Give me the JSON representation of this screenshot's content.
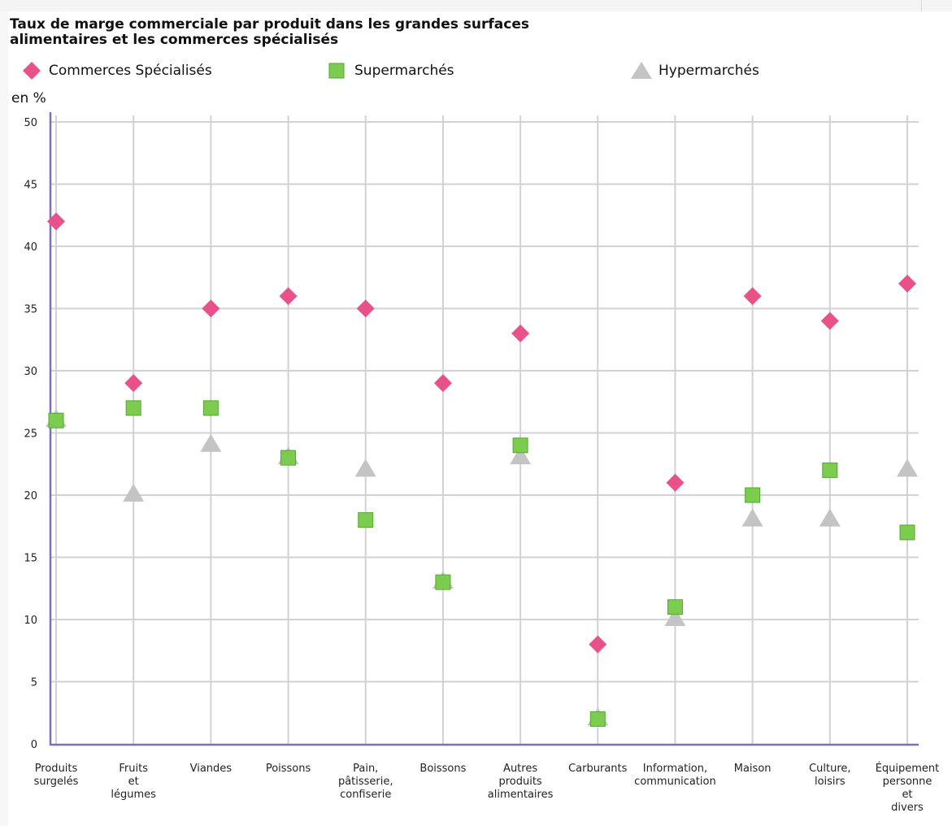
{
  "chart_data": {
    "type": "scatter",
    "title": "Taux de marge commerciale par produit dans les grandes surfaces\nalimentaires et les commerces spécialisés",
    "unit_label": "en %",
    "categories": [
      "Produits\nsurgelés",
      "Fruits\net\nlégumes",
      "Viandes",
      "Poissons",
      "Pain,\npâtisserie,\nconfiserie",
      "Boissons",
      "Autres\nproduits\nalimentaires",
      "Carburants",
      "Information,\ncommunication",
      "Maison",
      "Culture,\nloisirs",
      "Équipement\npersonne\net\ndivers"
    ],
    "series": [
      {
        "name": "Commerces Spécialisés",
        "marker": "diamond",
        "color": "#e8518a",
        "values": [
          42,
          29,
          35,
          36,
          35,
          29,
          33,
          8,
          21,
          36,
          34,
          37
        ]
      },
      {
        "name": "Supermarchés",
        "marker": "square",
        "color": "#7ccd4f",
        "stroke": "#52a82e",
        "values": [
          26,
          27,
          27,
          23,
          18,
          13,
          24,
          2,
          11,
          20,
          22,
          17
        ]
      },
      {
        "name": "Hypermarchés",
        "marker": "triangle",
        "color": "#c4c4c4",
        "values": [
          26,
          20,
          24,
          23,
          22,
          13,
          23,
          2,
          10,
          18,
          18,
          22
        ]
      }
    ],
    "y_ticks": [
      0,
      5,
      10,
      15,
      20,
      25,
      30,
      35,
      40,
      45,
      50
    ],
    "ylim": [
      0,
      50
    ],
    "grid": true,
    "legend_position": "top"
  },
  "colors": {
    "axis": "#7d6fbf",
    "grid": "#d2d2d2"
  }
}
